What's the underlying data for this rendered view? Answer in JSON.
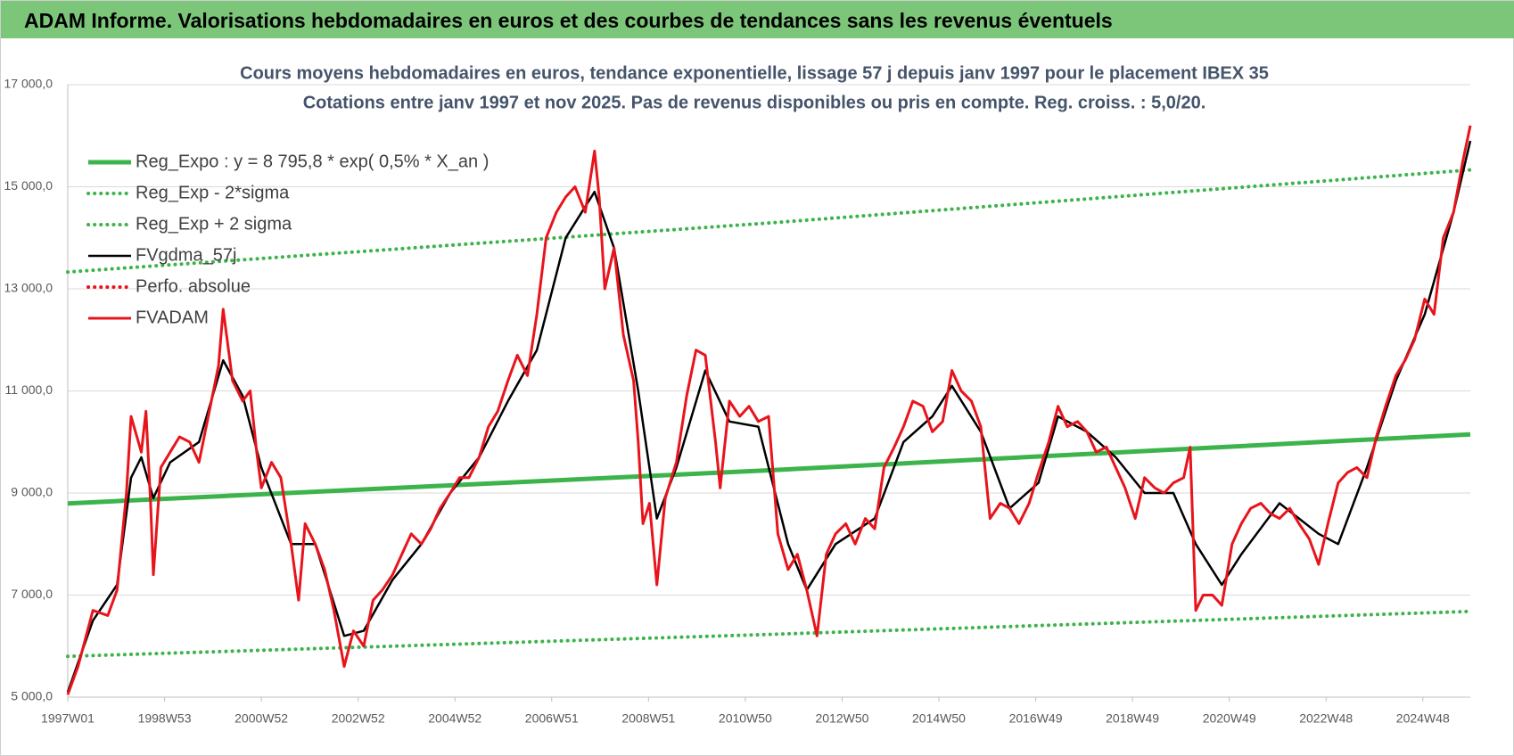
{
  "chart_data": {
    "type": "line",
    "title": "ADAM Informe. Valorisations hebdomadaires en euros et des courbes de tendances sans les revenus éventuels",
    "subtitle": [
      "Cours moyens hebdomadaires en euros, tendance exponentielle, lissage 57 j depuis janv 1997  pour le placement IBEX 35",
      "Cotations entre janv 1997 et nov 2025. Pas de revenus disponibles ou pris en compte. Reg. croiss. : 5,0/20."
    ],
    "xlim": [
      0,
      1507
    ],
    "xticks": [
      {
        "value": 0,
        "label": "1997W01"
      },
      {
        "value": 104,
        "label": "1998W53"
      },
      {
        "value": 208,
        "label": "2000W52"
      },
      {
        "value": 312,
        "label": "2002W52"
      },
      {
        "value": 416,
        "label": "2004W52"
      },
      {
        "value": 520,
        "label": "2006W51"
      },
      {
        "value": 624,
        "label": "2008W51"
      },
      {
        "value": 728,
        "label": "2010W50"
      },
      {
        "value": 832,
        "label": "2012W50"
      },
      {
        "value": 936,
        "label": "2014W50"
      },
      {
        "value": 1040,
        "label": "2016W49"
      },
      {
        "value": 1144,
        "label": "2018W49"
      },
      {
        "value": 1248,
        "label": "2020W49"
      },
      {
        "value": 1352,
        "label": "2022W48"
      },
      {
        "value": 1456,
        "label": "2024W48"
      }
    ],
    "ylim": [
      5000,
      17000
    ],
    "yticks": [
      {
        "value": 5000,
        "label": "5 000,0"
      },
      {
        "value": 7000,
        "label": "7 000,0"
      },
      {
        "value": 9000,
        "label": "9 000,0"
      },
      {
        "value": 11000,
        "label": "11 000,0"
      },
      {
        "value": 13000,
        "label": "13 000,0"
      },
      {
        "value": 15000,
        "label": "15 000,0"
      },
      {
        "value": 17000,
        "label": "17 000,0"
      }
    ],
    "grid": true,
    "legend": "top-left",
    "series": [
      {
        "name": "Reg_Expo : y = 8 795,8 * exp( 0,5% *  X_an )",
        "color": "#3cb44b",
        "style": "solid",
        "x": [
          0,
          754,
          1507
        ],
        "values": [
          8795.8,
          9445,
          10150
        ]
      },
      {
        "name": "Reg_Exp - 2*sigma",
        "color": "#3cb44b",
        "style": "dotted",
        "x": [
          0,
          754,
          1507
        ],
        "values": [
          5800,
          6230,
          6680
        ]
      },
      {
        "name": "Reg_Exp + 2 sigma",
        "color": "#3cb44b",
        "style": "dotted",
        "x": [
          0,
          754,
          1507
        ],
        "values": [
          13330,
          14290,
          15330
        ]
      },
      {
        "name": "FVgdma_57j",
        "color": "#000000",
        "style": "solid",
        "x": [
          0,
          27,
          53,
          68,
          79,
          92,
          110,
          141,
          167,
          188,
          208,
          240,
          266,
          297,
          318,
          349,
          380,
          411,
          442,
          473,
          504,
          535,
          566,
          587,
          613,
          633,
          654,
          685,
          711,
          742,
          774,
          794,
          825,
          867,
          898,
          929,
          950,
          981,
          1012,
          1043,
          1064,
          1095,
          1126,
          1157,
          1188,
          1212,
          1240,
          1261,
          1302,
          1344,
          1365,
          1396,
          1427,
          1458,
          1489,
          1507
        ],
        "values": [
          5100,
          6500,
          7200,
          9300,
          9700,
          8900,
          9600,
          10000,
          11600,
          10900,
          9500,
          8000,
          8000,
          6200,
          6300,
          7300,
          8000,
          9000,
          9700,
          10800,
          11800,
          14000,
          14900,
          13800,
          11000,
          8500,
          9500,
          11400,
          10400,
          10300,
          8000,
          7100,
          8000,
          8500,
          10000,
          10500,
          11100,
          10200,
          8700,
          9200,
          10500,
          10200,
          9700,
          9000,
          9000,
          8000,
          7200,
          7800,
          8800,
          8200,
          8000,
          9500,
          11200,
          12500,
          14500,
          15900
        ]
      },
      {
        "name": "Perfo. absolue",
        "color": "#e8141c",
        "style": "dotted"
      },
      {
        "name": "FVADAM",
        "color": "#e8141c",
        "style": "solid",
        "x": [
          0,
          11,
          27,
          43,
          53,
          63,
          68,
          79,
          84,
          89,
          92,
          100,
          110,
          120,
          131,
          141,
          151,
          162,
          167,
          177,
          188,
          196,
          203,
          208,
          219,
          229,
          240,
          248,
          255,
          266,
          276,
          286,
          297,
          307,
          318,
          328,
          338,
          349,
          359,
          369,
          380,
          390,
          400,
          411,
          421,
          431,
          442,
          452,
          462,
          473,
          483,
          494,
          504,
          514,
          525,
          535,
          545,
          556,
          566,
          571,
          577,
          587,
          597,
          608,
          613,
          618,
          625,
          633,
          642,
          654,
          665,
          675,
          685,
          696,
          701,
          711,
          722,
          732,
          742,
          753,
          763,
          774,
          784,
          794,
          805,
          815,
          825,
          836,
          846,
          857,
          867,
          877,
          888,
          898,
          908,
          919,
          929,
          940,
          950,
          960,
          971,
          981,
          991,
          1002,
          1012,
          1022,
          1033,
          1043,
          1054,
          1064,
          1074,
          1085,
          1095,
          1105,
          1116,
          1126,
          1136,
          1147,
          1157,
          1168,
          1178,
          1188,
          1199,
          1206,
          1212,
          1220,
          1230,
          1240,
          1251,
          1261,
          1271,
          1282,
          1292,
          1302,
          1313,
          1323,
          1334,
          1344,
          1354,
          1365,
          1375,
          1385,
          1396,
          1406,
          1416,
          1427,
          1437,
          1447,
          1458,
          1468,
          1478,
          1489,
          1499,
          1507
        ],
        "values": [
          5050,
          5600,
          6700,
          6600,
          7100,
          9000,
          10500,
          9800,
          10600,
          8800,
          7400,
          9500,
          9800,
          10100,
          10000,
          9600,
          10500,
          11500,
          12600,
          11200,
          10800,
          11000,
          9800,
          9100,
          9600,
          9300,
          8000,
          6900,
          8400,
          8000,
          7500,
          6700,
          5600,
          6300,
          6000,
          6900,
          7100,
          7400,
          7800,
          8200,
          8000,
          8300,
          8700,
          9000,
          9300,
          9300,
          9700,
          10300,
          10600,
          11200,
          11700,
          11300,
          12500,
          14000,
          14500,
          14800,
          15000,
          14500,
          15700,
          14800,
          13000,
          13800,
          12100,
          11200,
          10000,
          8400,
          8800,
          7200,
          8900,
          9600,
          10900,
          11800,
          11700,
          10000,
          9100,
          10800,
          10500,
          10700,
          10400,
          10500,
          8200,
          7500,
          7800,
          7100,
          6200,
          7800,
          8200,
          8400,
          8000,
          8500,
          8300,
          9500,
          9900,
          10300,
          10800,
          10700,
          10200,
          10400,
          11400,
          11000,
          10800,
          10300,
          8500,
          8800,
          8700,
          8400,
          8800,
          9400,
          10000,
          10700,
          10300,
          10400,
          10200,
          9800,
          9900,
          9500,
          9100,
          8500,
          9300,
          9100,
          9000,
          9200,
          9300,
          9900,
          6700,
          7000,
          7000,
          6800,
          8000,
          8400,
          8700,
          8800,
          8600,
          8500,
          8700,
          8400,
          8100,
          7600,
          8400,
          9200,
          9400,
          9500,
          9300,
          10100,
          10700,
          11300,
          11600,
          12000,
          12800,
          12500,
          14000,
          14500,
          15500,
          16200
        ]
      }
    ]
  }
}
